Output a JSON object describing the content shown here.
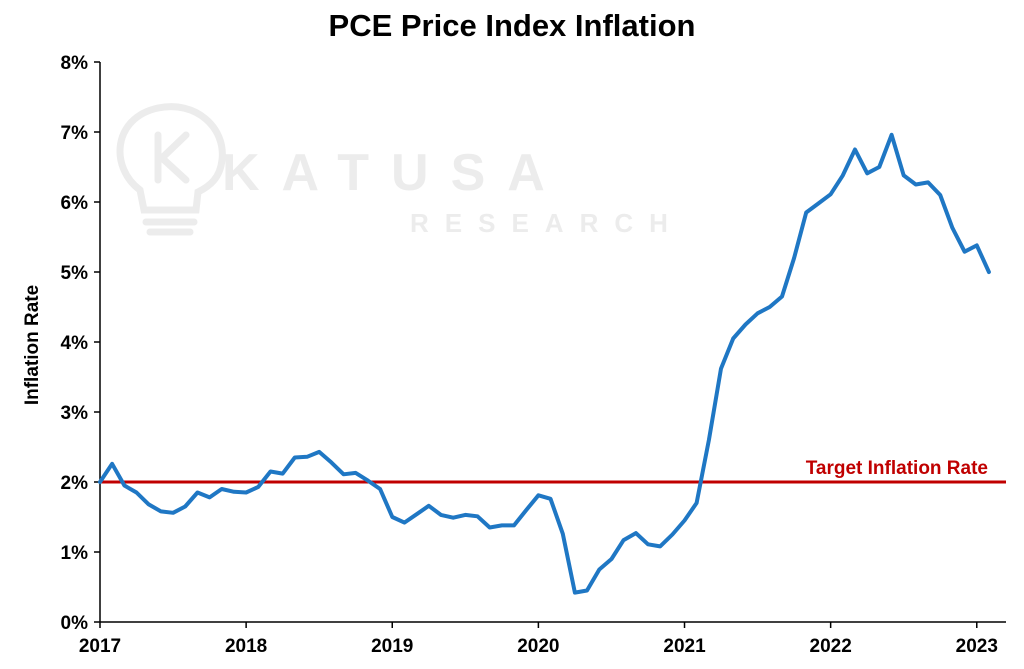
{
  "watermark": {
    "line1": "KATUSA",
    "line2": "RESEARCH",
    "icon": "lightbulb-k-logo"
  },
  "colors": {
    "series": "#1f77c4",
    "target": "#c00000",
    "axis": "#000000"
  },
  "chart_data": {
    "type": "line",
    "title": "PCE Price Index Inflation",
    "xlabel": "",
    "ylabel": "Inflation Rate",
    "xlim": [
      2017.0,
      2023.2
    ],
    "ylim": [
      0,
      8
    ],
    "x_ticks": [
      2017,
      2018,
      2019,
      2020,
      2021,
      2022,
      2023
    ],
    "y_ticks": [
      "0%",
      "1%",
      "2%",
      "3%",
      "4%",
      "5%",
      "6%",
      "7%",
      "8%"
    ],
    "grid": false,
    "series": [
      {
        "x": [
          2017.0,
          2017.083,
          2017.167,
          2017.25,
          2017.333,
          2017.417,
          2017.5,
          2017.583,
          2017.667,
          2017.75,
          2017.833,
          2017.917,
          2018.0,
          2018.083,
          2018.167,
          2018.25,
          2018.333,
          2018.417,
          2018.5,
          2018.583,
          2018.667,
          2018.75,
          2018.833,
          2018.917,
          2019.0,
          2019.083,
          2019.167,
          2019.25,
          2019.333,
          2019.417,
          2019.5,
          2019.583,
          2019.667,
          2019.75,
          2019.833,
          2019.917,
          2020.0,
          2020.083,
          2020.167,
          2020.25,
          2020.333,
          2020.417,
          2020.5,
          2020.583,
          2020.667,
          2020.75,
          2020.833,
          2020.917,
          2021.0,
          2021.083,
          2021.167,
          2021.25,
          2021.333,
          2021.417,
          2021.5,
          2021.583,
          2021.667,
          2021.75,
          2021.833,
          2021.917,
          2022.0,
          2022.083,
          2022.167,
          2022.25,
          2022.333,
          2022.417,
          2022.5,
          2022.583,
          2022.667,
          2022.75,
          2022.833,
          2022.917,
          2023.0,
          2023.083
        ],
        "values": [
          2.0,
          2.26,
          1.95,
          1.85,
          1.68,
          1.58,
          1.56,
          1.65,
          1.85,
          1.78,
          1.9,
          1.86,
          1.85,
          1.93,
          2.15,
          2.12,
          2.35,
          2.36,
          2.43,
          2.28,
          2.11,
          2.13,
          2.02,
          1.9,
          1.5,
          1.42,
          1.54,
          1.66,
          1.53,
          1.49,
          1.53,
          1.51,
          1.35,
          1.38,
          1.38,
          1.6,
          1.81,
          1.76,
          1.26,
          0.42,
          0.45,
          0.75,
          0.9,
          1.17,
          1.27,
          1.11,
          1.08,
          1.25,
          1.45,
          1.7,
          2.6,
          3.62,
          4.05,
          4.25,
          4.41,
          4.5,
          4.65,
          5.2,
          5.85,
          5.98,
          6.11,
          6.38,
          6.75,
          6.41,
          6.5,
          6.96,
          6.38,
          6.25,
          6.28,
          6.1,
          5.63,
          5.29,
          5.38,
          5.0
        ]
      }
    ],
    "reference_line": {
      "value": 2,
      "label": "Target Inflation Rate"
    }
  }
}
